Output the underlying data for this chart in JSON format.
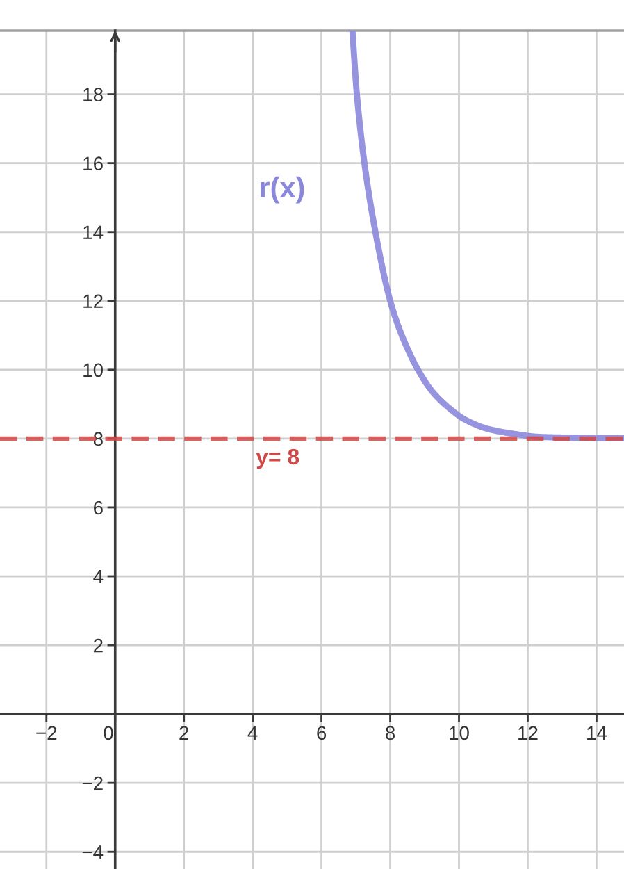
{
  "chart_data": {
    "type": "line",
    "x": [
      6.9,
      7.03,
      7.25,
      7.57,
      8.0,
      8.22,
      8.49,
      8.83,
      9.23,
      9.71,
      10.18,
      10.85,
      11.52,
      12.33,
      13.1,
      14.79
    ],
    "series": [
      {
        "name": "r(x)",
        "color": "#8b88dc",
        "values": [
          19.85,
          18,
          16,
          14,
          12,
          11.31,
          10.64,
          9.96,
          9.36,
          8.89,
          8.55,
          8.28,
          8.15,
          8.05,
          8.03,
          8.01
        ]
      }
    ],
    "xlim": [
      -3.35,
      14.8
    ],
    "ylim": [
      -4.5,
      19.85
    ],
    "xticks": [
      {
        "value": -2,
        "label": "−2"
      },
      0,
      2,
      4,
      6,
      8,
      10,
      12,
      14
    ],
    "yticks": [
      {
        "value": -4,
        "label": "−4"
      },
      {
        "value": -2,
        "label": "−2"
      },
      2,
      4,
      6,
      8,
      10,
      12,
      14,
      16,
      18
    ],
    "ref_lines": [
      {
        "axis": "y",
        "value": 8,
        "label": "y= 8",
        "color": "#d04848",
        "line_style": "dashed"
      }
    ],
    "grid": true,
    "legend": false,
    "marker": "none",
    "line_style": "solid"
  }
}
